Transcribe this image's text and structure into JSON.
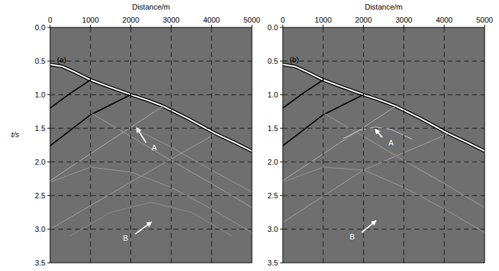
{
  "chart_data": [
    {
      "type": "line",
      "title": "(a)",
      "xlabel": "Distance/m",
      "ylabel": "t/s",
      "xlim": [
        0,
        5000
      ],
      "ylim": [
        3.5,
        0
      ],
      "xticks": [
        0,
        1000,
        2000,
        3000,
        4000,
        5000
      ],
      "yticks": [
        0,
        0.5,
        1.0,
        1.5,
        2.0,
        2.5,
        3.0,
        3.5
      ],
      "grid": true,
      "series": [
        {
          "color": "#ffffff",
          "x": [
            0,
            300,
            600,
            1000,
            1400,
            2000,
            2400,
            2800,
            3400,
            4100,
            4600,
            5000
          ],
          "values": [
            0.55,
            0.58,
            0.66,
            0.78,
            0.87,
            1.0,
            1.08,
            1.17,
            1.35,
            1.58,
            1.72,
            1.84
          ]
        },
        {
          "color": "#000000",
          "x": [
            0,
            500,
            1000
          ],
          "values": [
            1.2,
            0.98,
            0.78
          ]
        },
        {
          "color": "#000000",
          "x": [
            0,
            1000,
            2000
          ],
          "values": [
            1.76,
            1.3,
            1.0
          ]
        },
        {
          "color": "#b0b0b0",
          "x": [
            0,
            1400,
            2800
          ],
          "values": [
            2.28,
            1.72,
            1.17
          ]
        },
        {
          "color": "#a0a0a0",
          "x": [
            0,
            2000,
            4100
          ],
          "values": [
            3.0,
            2.3,
            1.58
          ]
        },
        {
          "color": "#a0a0a0",
          "x": [
            1000,
            2000,
            3000,
            4000,
            5000
          ],
          "values": [
            1.27,
            1.62,
            1.98,
            2.32,
            2.68
          ]
        },
        {
          "color": "#999999",
          "x": [
            2000,
            3000,
            4000,
            5000
          ],
          "values": [
            1.48,
            1.78,
            2.12,
            2.45
          ]
        },
        {
          "color": "#999999",
          "x": [
            0,
            1000,
            2000,
            3000,
            4000,
            5000
          ],
          "values": [
            2.3,
            2.08,
            2.15,
            2.38,
            2.7,
            3.05
          ]
        },
        {
          "color": "#8c8c8c",
          "x": [
            500,
            1500,
            2500,
            3500,
            4500
          ],
          "values": [
            3.1,
            2.75,
            2.6,
            2.75,
            3.1
          ]
        }
      ],
      "annotations": [
        {
          "text": "A",
          "x": 2450,
          "y": 1.78,
          "target_x": 2150,
          "target_y": 1.5
        },
        {
          "text": "B",
          "x": 2000,
          "y": 3.12,
          "target_x": 2500,
          "target_y": 2.9
        }
      ]
    },
    {
      "type": "line",
      "title": "(b)",
      "xlabel": "Distance/m",
      "xlim": [
        0,
        5000
      ],
      "ylim": [
        3.5,
        0
      ],
      "xticks": [
        0,
        1000,
        2000,
        3000,
        4000,
        5000
      ],
      "yticks": [
        0,
        0.5,
        1.0,
        1.5,
        2.0,
        2.5,
        3.0,
        3.5
      ],
      "grid": true,
      "series": [
        {
          "color": "#ffffff",
          "x": [
            0,
            300,
            600,
            1000,
            1400,
            2000,
            2400,
            2800,
            3400,
            4100,
            4600,
            5000
          ],
          "values": [
            0.55,
            0.58,
            0.66,
            0.78,
            0.87,
            1.0,
            1.08,
            1.17,
            1.35,
            1.58,
            1.72,
            1.84
          ]
        },
        {
          "color": "#000000",
          "x": [
            0,
            500,
            1000
          ],
          "values": [
            1.2,
            0.98,
            0.78
          ]
        },
        {
          "color": "#000000",
          "x": [
            0,
            1000,
            2000
          ],
          "values": [
            1.76,
            1.3,
            1.0
          ]
        },
        {
          "color": "#b0b0b0",
          "x": [
            0,
            1400,
            2800
          ],
          "values": [
            2.28,
            1.72,
            1.17
          ]
        },
        {
          "color": "#a0a0a0",
          "x": [
            0,
            2000,
            4100
          ],
          "values": [
            2.9,
            2.12,
            1.58
          ]
        },
        {
          "color": "#a0a0a0",
          "x": [
            1000,
            2000,
            3000,
            4000,
            5000
          ],
          "values": [
            1.27,
            1.62,
            1.98,
            2.32,
            2.68
          ]
        },
        {
          "color": "#d0d0d0",
          "x": [
            1500,
            1900,
            2300,
            2700,
            3200
          ],
          "values": [
            1.65,
            1.53,
            1.48,
            1.52,
            1.66
          ]
        },
        {
          "color": "#999999",
          "x": [
            0,
            1000,
            2000,
            3000,
            4000,
            5000
          ],
          "values": [
            2.3,
            2.08,
            2.12,
            2.38,
            2.7,
            3.05
          ]
        }
      ],
      "annotations": [
        {
          "text": "A",
          "x": 2550,
          "y": 1.7,
          "target_x": 2300,
          "target_y": 1.52
        },
        {
          "text": "B",
          "x": 1850,
          "y": 3.1,
          "target_x": 2300,
          "target_y": 2.88
        }
      ]
    }
  ]
}
